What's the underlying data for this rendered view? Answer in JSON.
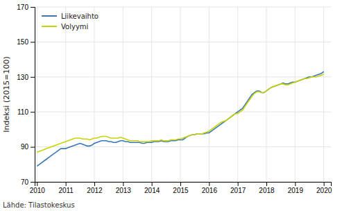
{
  "chart_data": {
    "type": "line",
    "ylabel": "Indeksi (2015=100)",
    "annotations": [
      "Lähde: Tilastokeskus"
    ],
    "xlim": [
      2009.92,
      2020.25
    ],
    "xticks": [
      2010,
      2011,
      2012,
      2013,
      2014,
      2015,
      2016,
      2017,
      2018,
      2019,
      2020
    ],
    "ylim": [
      70,
      170
    ],
    "yticks": [
      70,
      90,
      110,
      130,
      150,
      170
    ],
    "grid": true,
    "legend": "upper left",
    "x": [
      2010.0,
      2010.083,
      2010.167,
      2010.25,
      2010.333,
      2010.417,
      2010.5,
      2010.583,
      2010.667,
      2010.75,
      2010.833,
      2010.917,
      2011.0,
      2011.083,
      2011.167,
      2011.25,
      2011.333,
      2011.417,
      2011.5,
      2011.583,
      2011.667,
      2011.75,
      2011.833,
      2011.917,
      2012.0,
      2012.083,
      2012.167,
      2012.25,
      2012.333,
      2012.417,
      2012.5,
      2012.583,
      2012.667,
      2012.75,
      2012.833,
      2012.917,
      2013.0,
      2013.083,
      2013.167,
      2013.25,
      2013.333,
      2013.417,
      2013.5,
      2013.583,
      2013.667,
      2013.75,
      2013.833,
      2013.917,
      2014.0,
      2014.083,
      2014.167,
      2014.25,
      2014.333,
      2014.417,
      2014.5,
      2014.583,
      2014.667,
      2014.75,
      2014.833,
      2014.917,
      2015.0,
      2015.083,
      2015.167,
      2015.25,
      2015.333,
      2015.417,
      2015.5,
      2015.583,
      2015.667,
      2015.75,
      2015.833,
      2015.917,
      2016.0,
      2016.083,
      2016.167,
      2016.25,
      2016.333,
      2016.417,
      2016.5,
      2016.583,
      2016.667,
      2016.75,
      2016.833,
      2016.917,
      2017.0,
      2017.083,
      2017.167,
      2017.25,
      2017.333,
      2017.417,
      2017.5,
      2017.583,
      2017.667,
      2017.75,
      2017.833,
      2017.917,
      2018.0,
      2018.083,
      2018.167,
      2018.25,
      2018.333,
      2018.417,
      2018.5,
      2018.583,
      2018.667,
      2018.75,
      2018.833,
      2018.917,
      2019.0,
      2019.083,
      2019.167,
      2019.25,
      2019.333,
      2019.417,
      2019.5,
      2019.583,
      2019.667,
      2019.75,
      2019.833,
      2019.917,
      2020.0
    ],
    "series": [
      {
        "name": "Liikevaihto",
        "color": "#3a78b5",
        "values": [
          79,
          80,
          81,
          82,
          83,
          84,
          85,
          86,
          87,
          88,
          89,
          89,
          89,
          89.5,
          90,
          90.5,
          91,
          91.5,
          92,
          91.5,
          91,
          90.5,
          90.5,
          91,
          92,
          92.5,
          93,
          93.5,
          93.5,
          93.5,
          93,
          93,
          92.5,
          92.5,
          93,
          93.5,
          93.5,
          93,
          93,
          92.5,
          92.5,
          92.5,
          92.5,
          92.5,
          92,
          92,
          92.5,
          92.5,
          92.5,
          93,
          93,
          93,
          93.5,
          93,
          93,
          93,
          93.5,
          93.5,
          93.5,
          94,
          94,
          94,
          95,
          96,
          96.5,
          97,
          97,
          97.5,
          97.5,
          97.5,
          97.5,
          98,
          98,
          99,
          100,
          101,
          102,
          103,
          104,
          105,
          106,
          107,
          108,
          109,
          110,
          111,
          112,
          114,
          116,
          118,
          120,
          121,
          122,
          122,
          121,
          121,
          122,
          123,
          124,
          124.5,
          125,
          125.5,
          126,
          126.5,
          126,
          126,
          126.5,
          127,
          127,
          127.5,
          128,
          128.5,
          129,
          129.5,
          130,
          130,
          130.5,
          131,
          131.5,
          132,
          133
        ]
      },
      {
        "name": "Volyymi",
        "color": "#c8d400",
        "values": [
          87,
          87.5,
          88,
          88.5,
          89,
          89.5,
          90,
          90.5,
          91,
          91.5,
          92,
          92.5,
          93,
          93.5,
          94,
          94.5,
          95,
          95,
          95,
          94.5,
          94.5,
          94.5,
          94,
          94.5,
          95,
          95,
          95.5,
          96,
          96,
          96,
          95.5,
          95,
          95,
          95,
          95,
          95.5,
          95,
          94.5,
          94,
          93.5,
          93.5,
          93.5,
          93.5,
          93,
          93,
          93,
          93,
          93,
          93.5,
          93.5,
          93.5,
          93.5,
          94,
          93.5,
          93.5,
          93.5,
          94,
          94,
          94,
          94.5,
          94.5,
          95,
          95.5,
          96,
          96.5,
          97,
          97,
          97.5,
          97.5,
          97.5,
          98,
          98.5,
          99,
          100,
          101,
          102,
          103,
          104,
          104.5,
          105,
          106,
          107,
          108,
          109,
          109,
          110,
          111,
          113,
          115,
          117,
          119,
          120.5,
          121.5,
          121.5,
          121,
          121,
          122,
          123,
          124,
          124.5,
          125,
          125.5,
          126,
          126,
          125.5,
          125.5,
          126,
          126.5,
          127,
          127.5,
          128,
          128.5,
          129,
          129,
          129.5,
          130,
          130,
          130,
          130.5,
          131,
          131.5
        ]
      }
    ]
  }
}
